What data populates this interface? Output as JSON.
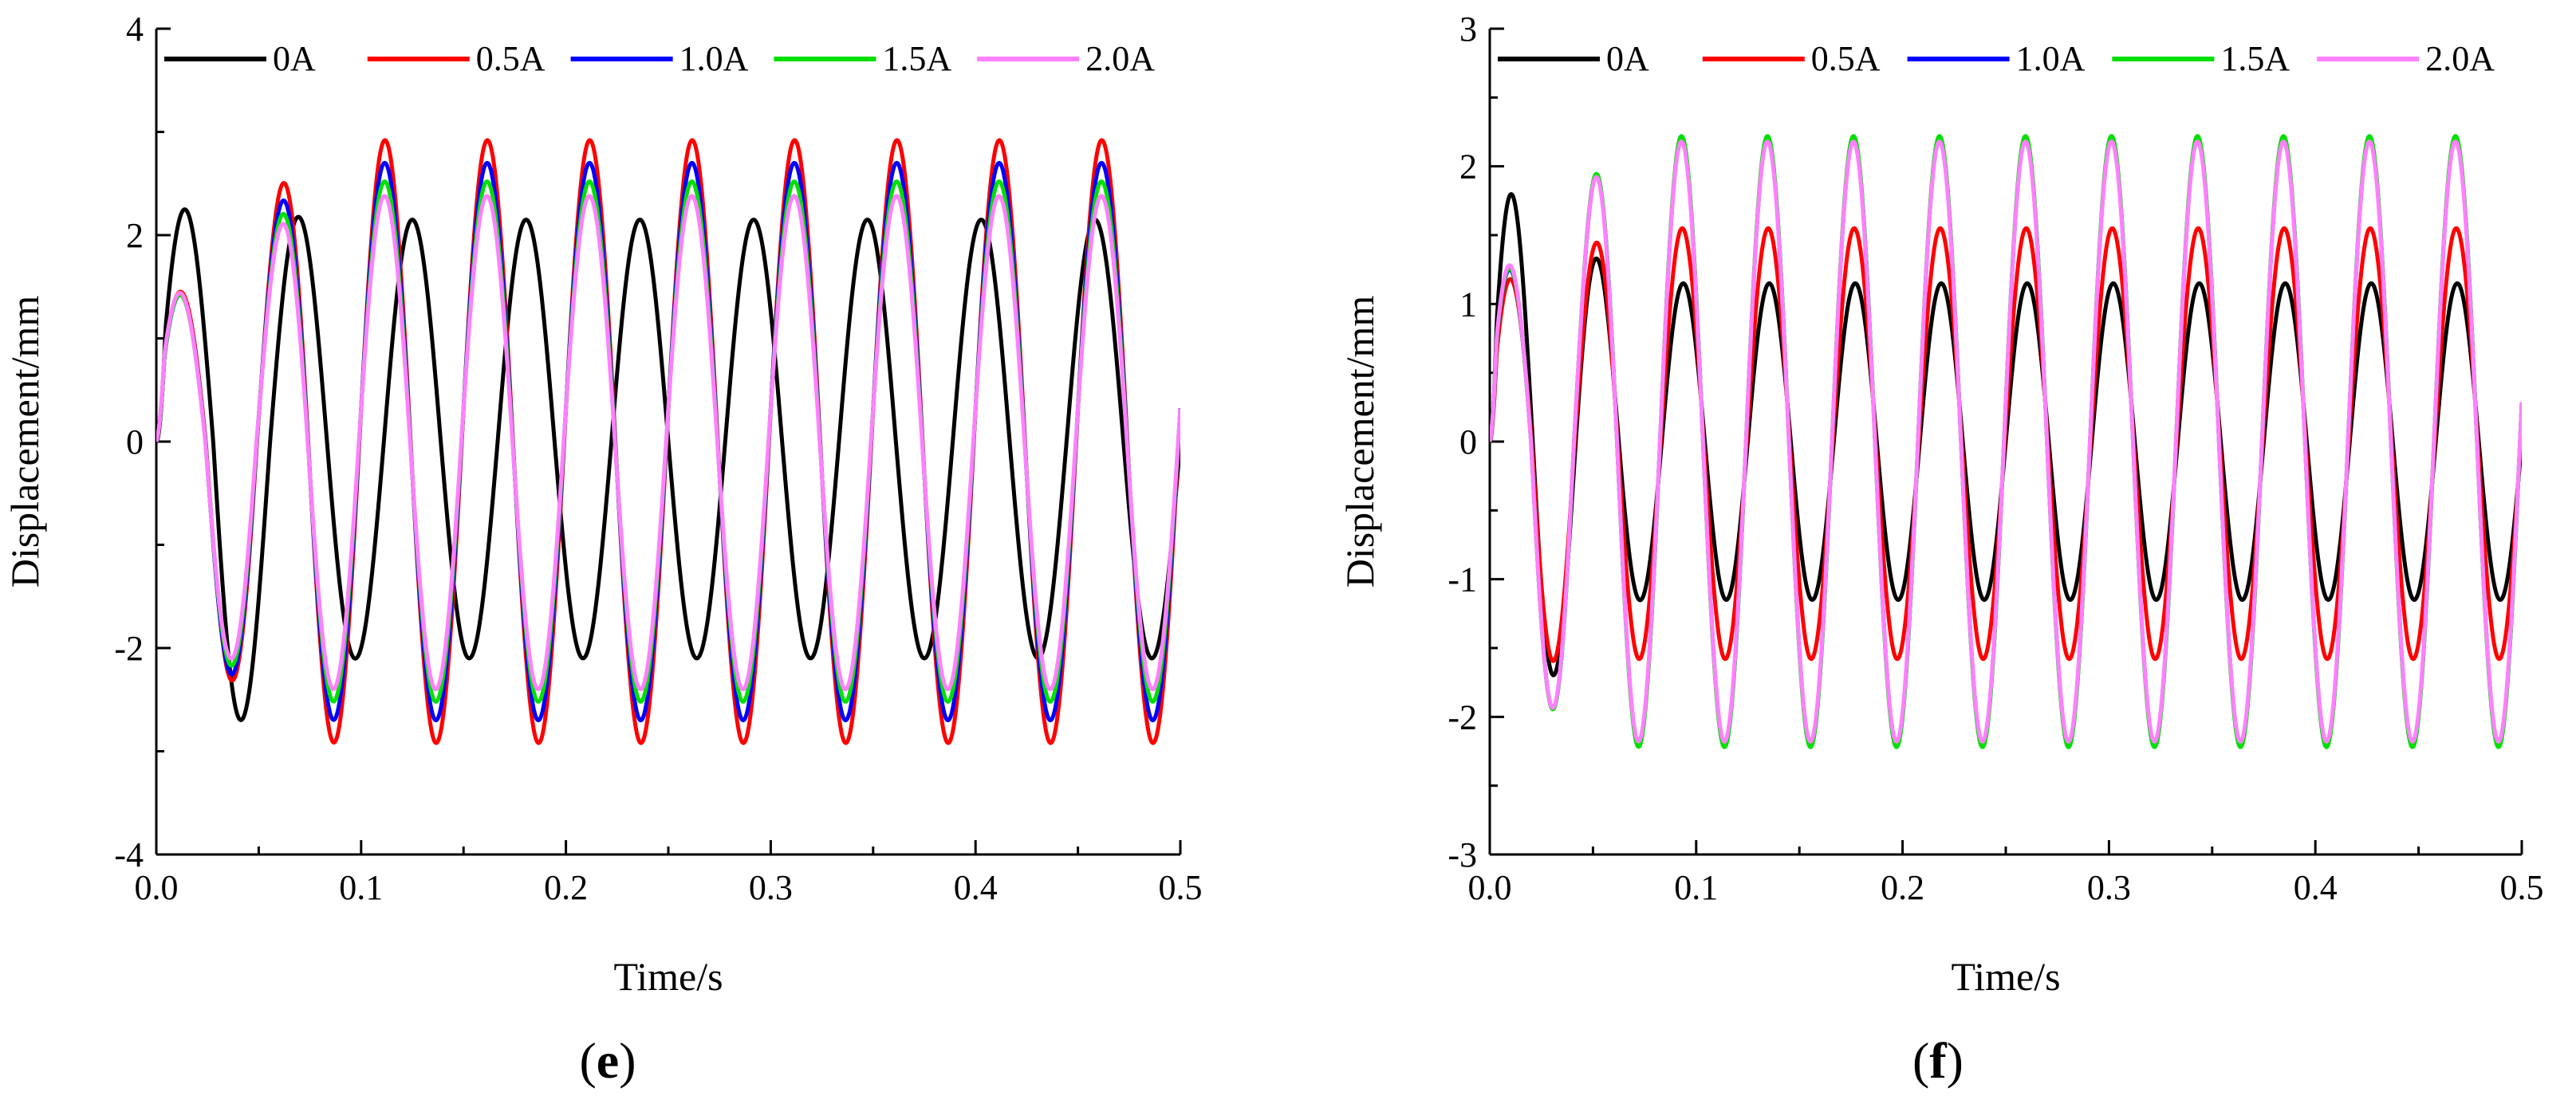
{
  "chart_data": [
    {
      "type": "line",
      "panel_label": "e",
      "xlabel": "Time/s",
      "ylabel": "Displacement/mm",
      "xlim": [
        0.0,
        0.5
      ],
      "ylim": [
        -4,
        4
      ],
      "x_ticks": [
        "0.0",
        "0.1",
        "0.2",
        "0.3",
        "0.4",
        "0.5"
      ],
      "y_ticks": [
        "-4",
        "-2",
        "0",
        "2",
        "4"
      ],
      "grid": false,
      "legend_position": "top",
      "series": [
        {
          "name": "0A",
          "color": "#000000",
          "frequency_hz": 18.0,
          "first_peak": 2.25,
          "first_trough": -2.92,
          "amplitude_max": 2.15,
          "amplitude_min": -2.1,
          "phase": 0.0
        },
        {
          "name": "0.5A",
          "color": "#ff0000",
          "frequency_hz": 20.0,
          "first_peak": 1.45,
          "first_trough": -2.1,
          "amplitude_max": 2.92,
          "amplitude_min": -2.92,
          "phase": 0.35
        },
        {
          "name": "1.0A",
          "color": "#0000ff",
          "frequency_hz": 20.0,
          "first_peak": 1.42,
          "first_trough": -2.1,
          "amplitude_max": 2.7,
          "amplitude_min": -2.7,
          "phase": 0.4
        },
        {
          "name": "1.5A",
          "color": "#00e000",
          "frequency_hz": 20.0,
          "first_peak": 1.42,
          "first_trough": -2.05,
          "amplitude_max": 2.52,
          "amplitude_min": -2.52,
          "phase": 0.42
        },
        {
          "name": "2.0A",
          "color": "#ff80ff",
          "frequency_hz": 20.0,
          "first_peak": 1.44,
          "first_trough": -2.0,
          "amplitude_max": 2.38,
          "amplitude_min": -2.4,
          "phase": 0.45
        }
      ]
    },
    {
      "type": "line",
      "panel_label": "f",
      "xlabel": "Time/s",
      "ylabel": "Displacement/mm",
      "xlim": [
        0.0,
        0.5
      ],
      "ylim": [
        -3,
        3
      ],
      "x_ticks": [
        "0.0",
        "0.1",
        "0.2",
        "0.3",
        "0.4",
        "0.5"
      ],
      "y_ticks": [
        "-3",
        "-2",
        "-1",
        "0",
        "1",
        "2",
        "3"
      ],
      "grid": false,
      "legend_position": "top",
      "series": [
        {
          "name": "0A",
          "color": "#000000",
          "frequency_hz": 24.0,
          "first_peak": 1.8,
          "first_trough": -1.9,
          "amplitude_max": 1.15,
          "amplitude_min": -1.15,
          "phase": 0.0
        },
        {
          "name": "0.5A",
          "color": "#ff0000",
          "frequency_hz": 24.0,
          "first_peak": 1.18,
          "first_trough": -1.6,
          "amplitude_max": 1.55,
          "amplitude_min": -1.58,
          "phase": 0.25
        },
        {
          "name": "1.0A",
          "color": "#0000ff",
          "frequency_hz": 24.0,
          "first_peak": 1.25,
          "first_trough": -1.85,
          "amplitude_max": 2.2,
          "amplitude_min": -2.2,
          "phase": 0.42
        },
        {
          "name": "1.5A",
          "color": "#00e000",
          "frequency_hz": 24.0,
          "first_peak": 1.26,
          "first_trough": -1.85,
          "amplitude_max": 2.22,
          "amplitude_min": -2.22,
          "phase": 0.43
        },
        {
          "name": "2.0A",
          "color": "#ff80ff",
          "frequency_hz": 24.0,
          "first_peak": 1.28,
          "first_trough": -1.85,
          "amplitude_max": 2.18,
          "amplitude_min": -2.18,
          "phase": 0.44
        }
      ]
    }
  ]
}
